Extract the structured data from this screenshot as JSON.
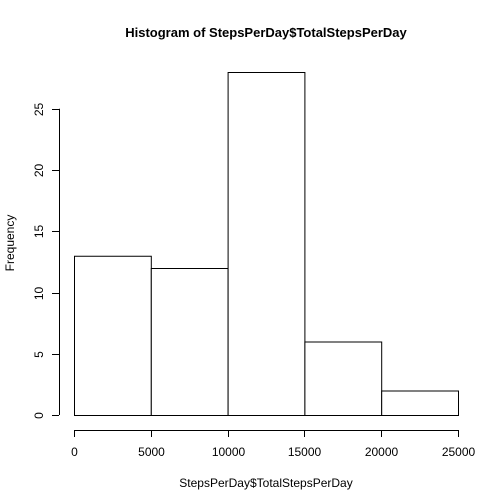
{
  "chart_data": {
    "type": "bar",
    "title": "Histogram of StepsPerDay$TotalStepsPerDay",
    "xlabel": "StepsPerDay$TotalStepsPerDay",
    "ylabel": "Frequency",
    "bins": [
      {
        "start": 0,
        "end": 5000,
        "count": 13
      },
      {
        "start": 5000,
        "end": 10000,
        "count": 12
      },
      {
        "start": 10000,
        "end": 15000,
        "count": 28
      },
      {
        "start": 15000,
        "end": 20000,
        "count": 6
      },
      {
        "start": 20000,
        "end": 25000,
        "count": 2
      }
    ],
    "xlim": [
      0,
      25000
    ],
    "ylim": [
      0,
      28
    ],
    "x_ticks": [
      0,
      5000,
      10000,
      15000,
      20000,
      25000
    ],
    "y_ticks": [
      0,
      5,
      10,
      15,
      20,
      25
    ],
    "grid": false,
    "legend": "none"
  }
}
